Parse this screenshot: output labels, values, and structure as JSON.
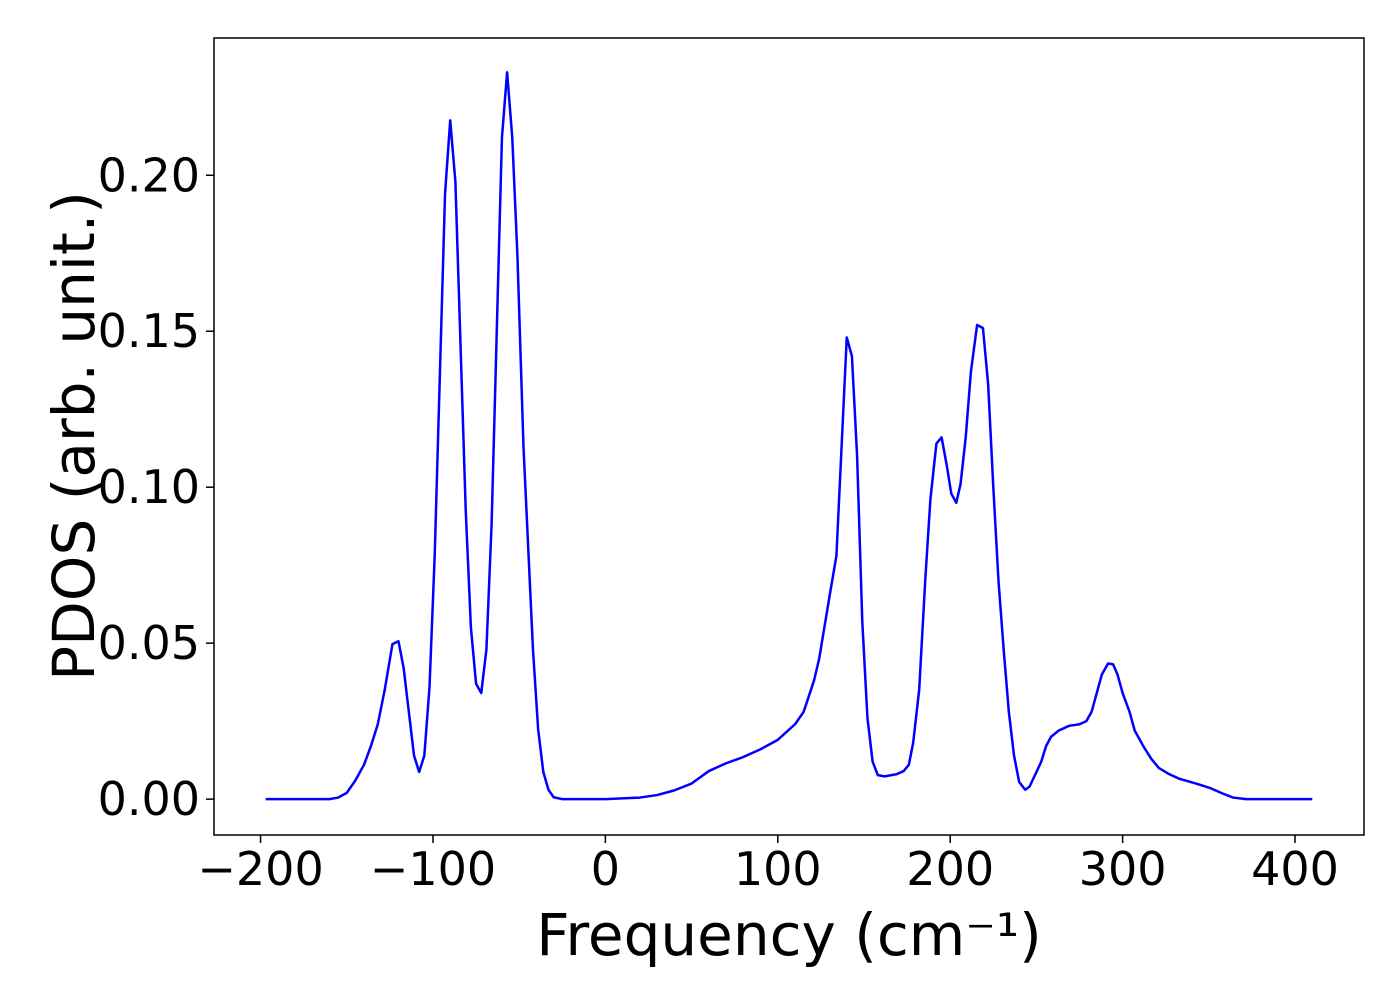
{
  "chart_data": {
    "type": "line",
    "xlabel": "Frequency (cm⁻¹)",
    "ylabel": "PDOS (arb. unit.)",
    "series": [
      {
        "color": "#0000ff",
        "x": [
          -197,
          -160,
          -155,
          -150,
          -145,
          -140,
          -136,
          -132,
          -128,
          -123.5,
          -120,
          -117,
          -111,
          -108,
          -105,
          -102,
          -99,
          -93,
          -90,
          -87,
          -81,
          -78,
          -75,
          -72,
          -69,
          -66,
          -60,
          -57,
          -54,
          -51,
          -47.5,
          -42,
          -39,
          -36,
          -33,
          -30,
          -25,
          0,
          20,
          30,
          40,
          50,
          60,
          70,
          80,
          90,
          100,
          110,
          115,
          118,
          121,
          124,
          127,
          130,
          134,
          140,
          143,
          146,
          149,
          152,
          155,
          158,
          162,
          169,
          173,
          176,
          178.5,
          182,
          185.5,
          188.5,
          192,
          195,
          198,
          200.6,
          203.5,
          206,
          209,
          212,
          215.6,
          219,
          222,
          225,
          228,
          231,
          234,
          237,
          240,
          243.5,
          246,
          249,
          252.8,
          255.6,
          258.5,
          263,
          269,
          275,
          279,
          282,
          285,
          288,
          291.6,
          294.5,
          297,
          300,
          304,
          307,
          312,
          316.5,
          321,
          327,
          333,
          342.6,
          351,
          358,
          364,
          371.6,
          410
        ],
        "values": [
          0,
          0,
          0.0005,
          0.002,
          0.006,
          0.011,
          0.017,
          0.024,
          0.035,
          0.0497,
          0.0506,
          0.042,
          0.014,
          0.0087,
          0.014,
          0.036,
          0.078,
          0.194,
          0.2176,
          0.198,
          0.0926,
          0.055,
          0.037,
          0.034,
          0.048,
          0.088,
          0.212,
          0.233,
          0.212,
          0.174,
          0.113,
          0.048,
          0.0224,
          0.0087,
          0.003,
          0.0006,
          0,
          0,
          0.0005,
          0.0013,
          0.0028,
          0.005,
          0.009,
          0.0115,
          0.0135,
          0.016,
          0.019,
          0.024,
          0.028,
          0.033,
          0.038,
          0.045,
          0.055,
          0.065,
          0.078,
          0.148,
          0.142,
          0.11,
          0.057,
          0.026,
          0.012,
          0.0077,
          0.0073,
          0.008,
          0.009,
          0.011,
          0.018,
          0.035,
          0.07,
          0.096,
          0.114,
          0.116,
          0.107,
          0.098,
          0.095,
          0.101,
          0.116,
          0.137,
          0.152,
          0.151,
          0.133,
          0.1,
          0.07,
          0.048,
          0.028,
          0.014,
          0.0055,
          0.003,
          0.004,
          0.0075,
          0.012,
          0.017,
          0.02,
          0.022,
          0.0235,
          0.024,
          0.025,
          0.028,
          0.034,
          0.04,
          0.0435,
          0.0432,
          0.04,
          0.034,
          0.028,
          0.022,
          0.017,
          0.013,
          0.01,
          0.008,
          0.0065,
          0.005,
          0.0035,
          0.0018,
          0.0005,
          0,
          0
        ]
      }
    ],
    "xlim": [
      -227,
      440
    ],
    "ylim": [
      -0.0115,
      0.244
    ],
    "xticks": [
      {
        "value": -200,
        "label": "−200"
      },
      {
        "value": -100,
        "label": "−100"
      },
      0,
      100,
      200,
      300,
      400
    ],
    "yticks": [
      {
        "value": 0,
        "label": "0.00"
      },
      {
        "value": 0.05,
        "label": "0.05"
      },
      {
        "value": 0.1,
        "label": "0.10"
      },
      {
        "value": 0.15,
        "label": "0.15"
      },
      {
        "value": 0.2,
        "label": "0.20"
      }
    ],
    "grid": false
  }
}
